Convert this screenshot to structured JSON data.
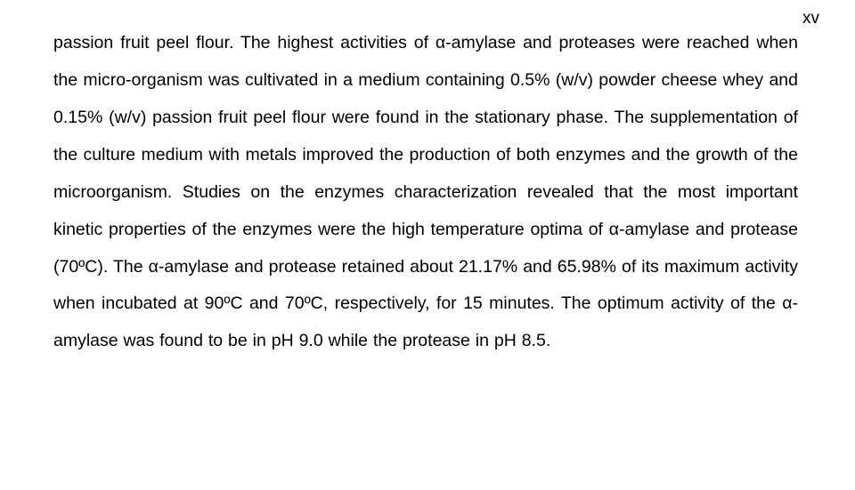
{
  "document": {
    "page_number": "xv",
    "body": "passion fruit peel flour. The highest activities of α-amylase and proteases were reached when the micro-organism was cultivated in a medium containing 0.5% (w/v) powder cheese whey and 0.15% (w/v) passion fruit peel flour were found in the stationary phase. The supplementation of the culture medium with metals improved the production of both enzymes and the growth of the microorganism. Studies on the enzymes characterization revealed that the most important kinetic properties of the enzymes were the high temperature optima of α-amylase and protease (70ºC). The α-amylase and protease retained about  21.17% and 65.98% of its maximum activity when incubated at 90ºC and 70ºC, respectively, for 15 minutes. The optimum activity of the α-amylase was found to be in pH 9.0 while the protease in pH 8.5.",
    "font_family": "Arial",
    "font_size_pt": 15,
    "line_height": 2.15,
    "text_color": "#000000",
    "background_color": "#ffffff"
  }
}
